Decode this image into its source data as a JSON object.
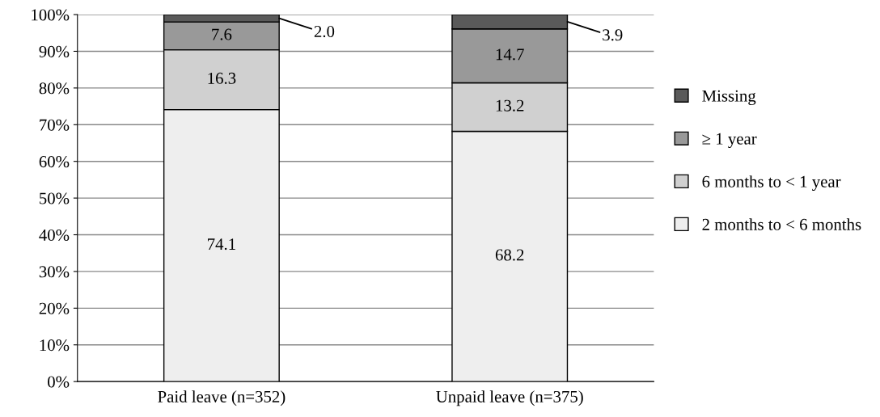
{
  "chart_data": {
    "type": "bar",
    "stacked": true,
    "categories": [
      "Paid leave (n=352)",
      "Unpaid leave (n=375)"
    ],
    "series": [
      {
        "name": "2 months to < 6 months",
        "color": "#eeeeee",
        "values": [
          74.1,
          68.2
        ],
        "value_labels": [
          "74.1",
          "68.2"
        ]
      },
      {
        "name": "6 months to < 1 year",
        "color": "#d0d0d0",
        "values": [
          16.3,
          13.2
        ],
        "value_labels": [
          "16.3",
          "13.2"
        ]
      },
      {
        "name": "≥ 1 year",
        "color": "#999999",
        "values": [
          7.6,
          14.7
        ],
        "value_labels": [
          "7.6",
          "14.7"
        ]
      },
      {
        "name": "Missing",
        "color": "#5a5a5a",
        "values": [
          2.0,
          3.9
        ],
        "value_labels": [
          "2.0",
          "3.9"
        ]
      }
    ],
    "ylim": [
      0,
      100
    ],
    "yticks": [
      {
        "value": 0,
        "label": "0%"
      },
      {
        "value": 10,
        "label": "10%"
      },
      {
        "value": 20,
        "label": "20%"
      },
      {
        "value": 30,
        "label": "30%"
      },
      {
        "value": 40,
        "label": "40%"
      },
      {
        "value": 50,
        "label": "50%"
      },
      {
        "value": 60,
        "label": "60%"
      },
      {
        "value": 70,
        "label": "70%"
      },
      {
        "value": 80,
        "label": "80%"
      },
      {
        "value": 90,
        "label": "90%"
      },
      {
        "value": 100,
        "label": "100%"
      }
    ],
    "grid": "y",
    "legend": "right"
  }
}
